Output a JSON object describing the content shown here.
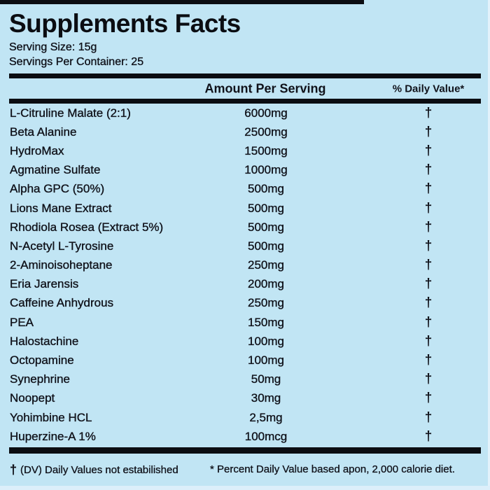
{
  "label": {
    "title": "Supplements Facts",
    "serving_size": "Serving Size: 15g",
    "servings_per_container": "Servings Per Container: 25",
    "columns": {
      "amount_header": "Amount Per Serving",
      "daily_value_header": "% Daily Value*"
    },
    "rows": [
      {
        "name": "L-Citruline Malate (2:1)",
        "amount": "6000mg",
        "dv": "†"
      },
      {
        "name": "Beta Alanine",
        "amount": "2500mg",
        "dv": "†"
      },
      {
        "name": "HydroMax",
        "amount": "1500mg",
        "dv": "†"
      },
      {
        "name": "Agmatine Sulfate",
        "amount": "1000mg",
        "dv": "†"
      },
      {
        "name": "Alpha GPC (50%)",
        "amount": "500mg",
        "dv": "†"
      },
      {
        "name": "Lions Mane Extract",
        "amount": "500mg",
        "dv": "†"
      },
      {
        "name": "Rhodiola Rosea (Extract 5%)",
        "amount": "500mg",
        "dv": "†"
      },
      {
        "name": "N-Acetyl L-Tyrosine",
        "amount": "500mg",
        "dv": "†"
      },
      {
        "name": "2-Aminoisoheptane",
        "amount": "250mg",
        "dv": "†"
      },
      {
        "name": "Eria Jarensis",
        "amount": "200mg",
        "dv": "†"
      },
      {
        "name": "Caffeine Anhydrous",
        "amount": "250mg",
        "dv": "†"
      },
      {
        "name": "PEA",
        "amount": "150mg",
        "dv": "†"
      },
      {
        "name": "Halostachine",
        "amount": "100mg",
        "dv": "†"
      },
      {
        "name": "Octopamine",
        "amount": "100mg",
        "dv": "†"
      },
      {
        "name": "Synephrine",
        "amount": "50mg",
        "dv": "†"
      },
      {
        "name": "Noopept",
        "amount": "30mg",
        "dv": "†"
      },
      {
        "name": "Yohimbine HCL",
        "amount": "2,5mg",
        "dv": "†"
      },
      {
        "name": "Huperzine-A 1%",
        "amount": "100mcg",
        "dv": "†"
      }
    ],
    "footnotes": {
      "dagger_symbol": "†",
      "left_text": "(DV) Daily Values not estabilished",
      "right_text": "* Percent Daily Value based apon, 2,000 calorie diet."
    },
    "colors": {
      "background": "#c1e5f4",
      "text": "#10121a",
      "rule": "#0b0d12"
    }
  }
}
